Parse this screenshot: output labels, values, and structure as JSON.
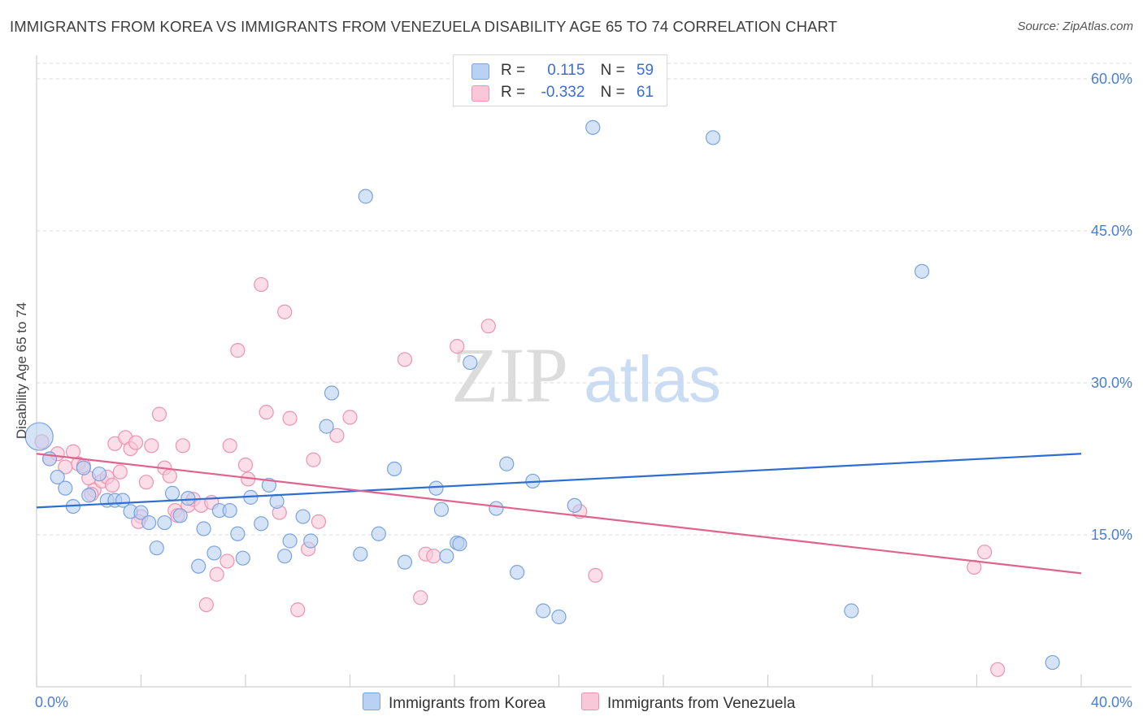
{
  "title": "IMMIGRANTS FROM KOREA VS IMMIGRANTS FROM VENEZUELA DISABILITY AGE 65 TO 74 CORRELATION CHART",
  "source": "Source: ZipAtlas.com",
  "watermark": {
    "zip": "ZIP",
    "atlas": "atlas"
  },
  "legend": {
    "korea": {
      "r_label": "R =",
      "r_value": "0.115",
      "n_label": "N =",
      "n_value": "59"
    },
    "venezuela": {
      "r_label": "R =",
      "r_value": "-0.332",
      "n_label": "N =",
      "n_value": "61"
    }
  },
  "colors": {
    "korea_fill": "#b9d1f2",
    "korea_stroke": "#7aa3de",
    "korea_line": "#2d6ed0",
    "venezuela_fill": "#f8c8d8",
    "venezuela_stroke": "#ec93b1",
    "venezuela_line": "#e0628f",
    "tick_text": "#4a7fcf",
    "grid": "#d9d9d9"
  },
  "chart_data": {
    "type": "scatter",
    "title": "IMMIGRANTS FROM KOREA VS IMMIGRANTS FROM VENEZUELA DISABILITY AGE 65 TO 74 CORRELATION CHART",
    "xlabel": "",
    "ylabel": "Disability Age 65 to 74",
    "xlim": [
      0,
      40
    ],
    "ylim": [
      0,
      62
    ],
    "x_tick_labels": [
      "0.0%",
      "40.0%"
    ],
    "y_ticks": [
      15,
      30,
      45,
      60
    ],
    "y_tick_labels": [
      "15.0%",
      "30.0%",
      "45.0%",
      "60.0%"
    ],
    "grid": true,
    "legend_position": "top-center",
    "series": [
      {
        "name": "Immigrants from Korea",
        "trend": [
          [
            0,
            17.7
          ],
          [
            40,
            23.0
          ]
        ],
        "points": [
          [
            0.1,
            24.7
          ],
          [
            0.5,
            22.5
          ],
          [
            0.8,
            20.7
          ],
          [
            1.1,
            19.6
          ],
          [
            1.4,
            17.8
          ],
          [
            1.8,
            21.6
          ],
          [
            2.0,
            18.9
          ],
          [
            2.4,
            21.0
          ],
          [
            2.7,
            18.4
          ],
          [
            3.0,
            18.4
          ],
          [
            3.3,
            18.4
          ],
          [
            3.6,
            17.3
          ],
          [
            4.0,
            17.2
          ],
          [
            4.3,
            16.2
          ],
          [
            4.6,
            13.7
          ],
          [
            4.9,
            16.2
          ],
          [
            5.2,
            19.1
          ],
          [
            5.5,
            16.9
          ],
          [
            5.8,
            18.6
          ],
          [
            6.2,
            11.9
          ],
          [
            6.4,
            15.6
          ],
          [
            6.8,
            13.2
          ],
          [
            7.0,
            17.4
          ],
          [
            7.4,
            17.4
          ],
          [
            7.7,
            15.1
          ],
          [
            7.9,
            12.7
          ],
          [
            8.2,
            18.7
          ],
          [
            8.6,
            16.1
          ],
          [
            8.9,
            19.9
          ],
          [
            9.2,
            18.3
          ],
          [
            9.5,
            12.9
          ],
          [
            9.7,
            14.4
          ],
          [
            10.2,
            16.8
          ],
          [
            10.5,
            14.4
          ],
          [
            11.1,
            25.7
          ],
          [
            11.3,
            29.0
          ],
          [
            12.4,
            13.1
          ],
          [
            12.6,
            48.4
          ],
          [
            13.1,
            15.1
          ],
          [
            13.7,
            21.5
          ],
          [
            14.1,
            12.3
          ],
          [
            15.3,
            19.6
          ],
          [
            15.5,
            17.5
          ],
          [
            15.7,
            12.9
          ],
          [
            16.1,
            14.2
          ],
          [
            16.2,
            14.1
          ],
          [
            16.6,
            32.0
          ],
          [
            17.6,
            17.6
          ],
          [
            18.0,
            22.0
          ],
          [
            18.4,
            11.3
          ],
          [
            19.0,
            20.3
          ],
          [
            19.4,
            7.5
          ],
          [
            20.0,
            6.9
          ],
          [
            20.6,
            17.9
          ],
          [
            21.3,
            55.2
          ],
          [
            25.9,
            54.2
          ],
          [
            33.9,
            41.0
          ],
          [
            31.2,
            7.5
          ],
          [
            38.9,
            2.4
          ]
        ]
      },
      {
        "name": "Immigrants from Venezuela",
        "trend": [
          [
            0,
            23.0
          ],
          [
            40,
            11.2
          ]
        ],
        "points": [
          [
            0.2,
            24.2
          ],
          [
            0.5,
            22.5
          ],
          [
            0.8,
            23.0
          ],
          [
            1.1,
            21.7
          ],
          [
            1.4,
            23.2
          ],
          [
            1.6,
            22.0
          ],
          [
            1.8,
            21.8
          ],
          [
            2.0,
            20.6
          ],
          [
            2.2,
            19.4
          ],
          [
            2.5,
            20.3
          ],
          [
            2.7,
            20.7
          ],
          [
            2.9,
            19.9
          ],
          [
            3.0,
            24.0
          ],
          [
            3.2,
            21.2
          ],
          [
            3.4,
            24.6
          ],
          [
            3.6,
            23.5
          ],
          [
            3.8,
            24.1
          ],
          [
            4.0,
            16.8
          ],
          [
            4.2,
            20.2
          ],
          [
            4.4,
            23.8
          ],
          [
            4.7,
            26.9
          ],
          [
            4.9,
            21.6
          ],
          [
            5.1,
            20.8
          ],
          [
            5.3,
            17.4
          ],
          [
            5.6,
            23.8
          ],
          [
            5.8,
            17.9
          ],
          [
            6.0,
            18.5
          ],
          [
            6.3,
            17.9
          ],
          [
            6.5,
            8.1
          ],
          [
            6.7,
            18.2
          ],
          [
            6.9,
            11.1
          ],
          [
            7.4,
            23.8
          ],
          [
            7.3,
            12.4
          ],
          [
            7.7,
            33.2
          ],
          [
            8.0,
            21.9
          ],
          [
            8.1,
            20.5
          ],
          [
            8.6,
            39.7
          ],
          [
            8.8,
            27.1
          ],
          [
            9.3,
            17.2
          ],
          [
            9.5,
            37.0
          ],
          [
            9.7,
            26.5
          ],
          [
            10.0,
            7.6
          ],
          [
            10.4,
            13.6
          ],
          [
            10.6,
            22.4
          ],
          [
            10.8,
            16.3
          ],
          [
            11.5,
            24.8
          ],
          [
            14.1,
            32.3
          ],
          [
            14.7,
            8.8
          ],
          [
            14.9,
            13.1
          ],
          [
            15.2,
            12.9
          ],
          [
            16.1,
            33.6
          ],
          [
            17.3,
            35.6
          ],
          [
            20.8,
            17.3
          ],
          [
            21.4,
            11.0
          ],
          [
            35.9,
            11.8
          ],
          [
            36.3,
            13.3
          ],
          [
            36.8,
            1.7
          ],
          [
            3.9,
            16.3
          ],
          [
            2.1,
            19.0
          ],
          [
            5.4,
            16.9
          ],
          [
            12.0,
            26.6
          ]
        ]
      }
    ]
  }
}
